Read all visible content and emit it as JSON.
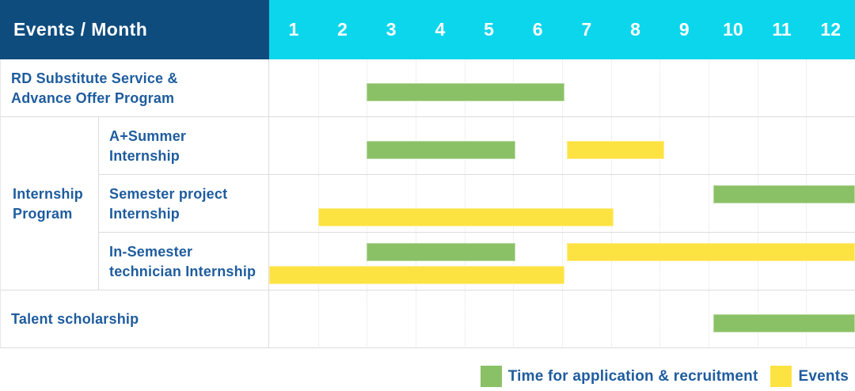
{
  "palette": {
    "header_bg": "#0E4C7E",
    "month_header_bg": "#0CD6EC",
    "header_text": "#FFFFFF",
    "label_text": "#1E5C9E",
    "bar_green": "#8AC166",
    "bar_yellow": "#FDE342",
    "grid_dot": "#E2E2E2",
    "divider": "#DCDCDC",
    "background": "#FFFFFF"
  },
  "header": {
    "title": "Events / Month"
  },
  "chart_data": {
    "type": "gantt",
    "title": "Events / Month",
    "x_unit": "month",
    "x_axis": {
      "label": "Month",
      "ticks": [
        "1",
        "2",
        "3",
        "4",
        "5",
        "6",
        "7",
        "8",
        "9",
        "10",
        "11",
        "12"
      ],
      "range": [
        1,
        12
      ]
    },
    "legend": [
      {
        "color_key": "green",
        "color": "#8AC166",
        "label": "Time for application & recruitment"
      },
      {
        "color_key": "yellow",
        "color": "#FDE342",
        "label": "Events"
      }
    ],
    "groups": [
      {
        "label": "Internship Program",
        "label_lines": [
          "Internship",
          "Program"
        ],
        "row_indexes": [
          1,
          2,
          3
        ]
      }
    ],
    "rows": [
      {
        "group": "",
        "label": "RD Substitute Service & Advance Offer Program",
        "label_lines": [
          "RD Substitute Service &",
          "Advance Offer Program"
        ],
        "lanes": 1,
        "bars": [
          {
            "series": "Time for application & recruitment",
            "color_key": "green",
            "months_covered": "3-6",
            "start": 3,
            "end": 7.05,
            "lane": 0
          }
        ]
      },
      {
        "group": "Internship Program",
        "label": "A+Summer Internship",
        "label_lines": [
          "A+Summer",
          "Internship"
        ],
        "lanes": 1,
        "bars": [
          {
            "series": "Time for application & recruitment",
            "color_key": "green",
            "months_covered": "3-5",
            "start": 3,
            "end": 6.05,
            "lane": 0
          },
          {
            "series": "Events",
            "color_key": "yellow",
            "months_covered": "7-8",
            "start": 7.1,
            "end": 9.1,
            "lane": 0
          }
        ]
      },
      {
        "group": "Internship Program",
        "label": "Semester project Internship",
        "label_lines": [
          "Semester project",
          "Internship"
        ],
        "lanes": 2,
        "bars": [
          {
            "series": "Time for application & recruitment",
            "color_key": "green",
            "months_covered": "10-12",
            "start": 10.1,
            "end": 13,
            "lane": 0
          },
          {
            "series": "Events",
            "color_key": "yellow",
            "months_covered": "2-7",
            "start": 2,
            "end": 8.05,
            "lane": 1
          }
        ]
      },
      {
        "group": "Internship Program",
        "label": "In-Semester technician Internship",
        "label_lines": [
          "In-Semester",
          "technician Internship"
        ],
        "lanes": 2,
        "bars": [
          {
            "series": "Time for application & recruitment",
            "color_key": "green",
            "months_covered": "3-5",
            "start": 3,
            "end": 6.05,
            "lane": 0
          },
          {
            "series": "Events",
            "color_key": "yellow",
            "months_covered": "7-12",
            "start": 7.1,
            "end": 13,
            "lane": 0
          },
          {
            "series": "Events",
            "color_key": "yellow",
            "months_covered": "1-6",
            "start": 1,
            "end": 7.05,
            "lane": 1
          }
        ]
      },
      {
        "group": "",
        "label": "Talent scholarship",
        "label_lines": [
          "Talent scholarship"
        ],
        "lanes": 1,
        "bars": [
          {
            "series": "Time for application & recruitment",
            "color_key": "green",
            "months_covered": "10-12",
            "start": 10.1,
            "end": 13,
            "lane": 0
          }
        ]
      }
    ]
  }
}
